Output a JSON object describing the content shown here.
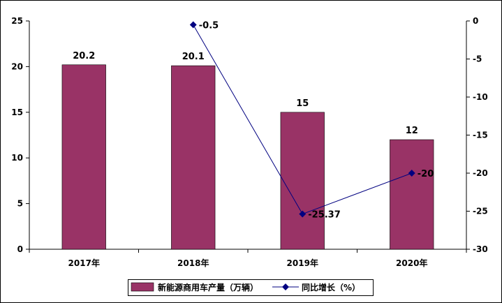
{
  "chart_data": {
    "type": "bar",
    "categories": [
      "2017年",
      "2018年",
      "2019年",
      "2020年"
    ],
    "series": [
      {
        "name": "新能源商用车产量（万辆）",
        "type": "bar",
        "axis": "left",
        "values": [
          20.2,
          20.1,
          15,
          12
        ],
        "labels": [
          "20.2",
          "20.1",
          "15",
          "12"
        ]
      },
      {
        "name": "同比增长（%）",
        "type": "line",
        "axis": "right",
        "values": [
          null,
          -0.5,
          -25.37,
          -20
        ],
        "labels": [
          "",
          "-0.5",
          "-25.37",
          "-20"
        ]
      }
    ],
    "y_left": {
      "min": 0,
      "max": 25,
      "ticks": [
        "0",
        "5",
        "10",
        "15",
        "20",
        "25"
      ]
    },
    "y_right": {
      "min": -30,
      "max": 0,
      "ticks": [
        "0",
        "-5",
        "-10",
        "-15",
        "-20",
        "-25",
        "-30"
      ]
    },
    "grid": false,
    "legend_position": "bottom",
    "colors": {
      "bar": "#993366",
      "line": "#000080",
      "axis": "#000000",
      "border": "#000000"
    }
  }
}
